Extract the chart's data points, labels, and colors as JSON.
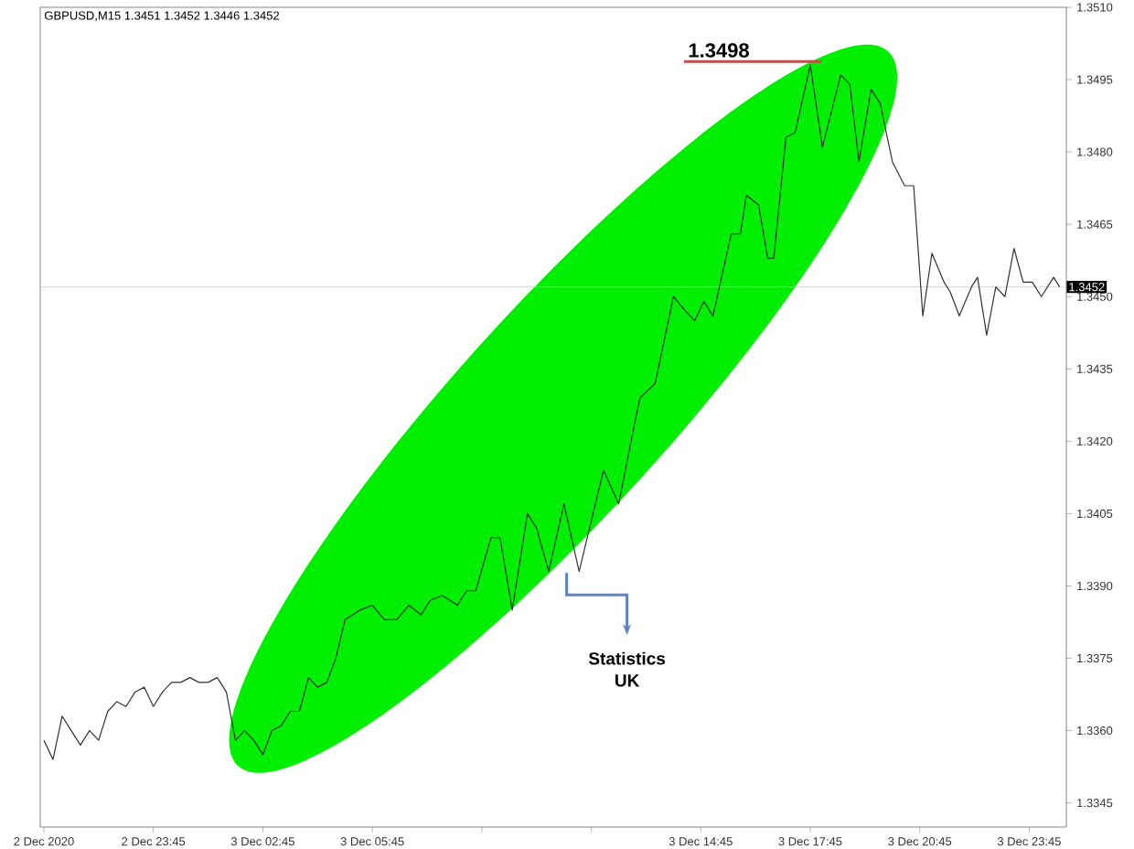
{
  "chart_data": {
    "type": "line",
    "title": "GBPUSD,M15  1.3451 1.3452 1.3446 1.3452",
    "xlim": [
      "2020-12-02T20:39",
      "2020-12-04T00:46"
    ],
    "ylim": [
      1.334,
      1.351
    ],
    "xticks": [
      {
        "value": "2020-12-02T20:45",
        "label": "2 Dec 2020"
      },
      {
        "value": "2020-12-02T23:45",
        "label": "2 Dec 23:45"
      },
      {
        "value": "2020-12-03T02:45",
        "label": "3 Dec 02:45"
      },
      {
        "value": "2020-12-03T05:45",
        "label": "3 Dec 05:45"
      },
      {
        "value": "2020-12-03T08:45",
        "label": null
      },
      {
        "value": "2020-12-03T11:45",
        "label": null
      },
      {
        "value": "2020-12-03T14:45",
        "label": "3 Dec 14:45"
      },
      {
        "value": "2020-12-03T17:45",
        "label": "3 Dec 17:45"
      },
      {
        "value": "2020-12-03T20:45",
        "label": "3 Dec 20:45"
      },
      {
        "value": "2020-12-03T23:45",
        "label": "3 Dec 23:45"
      }
    ],
    "yticks": [
      {
        "value": 1.3345,
        "label": "1.3345"
      },
      {
        "value": 1.336,
        "label": "1.3360"
      },
      {
        "value": 1.3375,
        "label": "1.3375"
      },
      {
        "value": 1.339,
        "label": "1.3390"
      },
      {
        "value": 1.3405,
        "label": "1.3405"
      },
      {
        "value": 1.342,
        "label": "1.3420"
      },
      {
        "value": 1.3435,
        "label": "1.3435"
      },
      {
        "value": 1.345,
        "label": "1.3450"
      },
      {
        "value": 1.3465,
        "label": "1.3465"
      },
      {
        "value": 1.348,
        "label": "1.3480"
      },
      {
        "value": 1.3495,
        "label": "1.3495"
      },
      {
        "value": 1.351,
        "label": "1.3510"
      }
    ],
    "grid": false,
    "marker": "none",
    "line_style": "solid",
    "ref_lines": [
      {
        "axis": "y",
        "value": 1.3452,
        "label": "1.3452",
        "color": "#c8c8c8"
      }
    ],
    "annotations": [
      {
        "text": "1.3498",
        "x": "2020-12-03T17:45",
        "y": 1.3498
      },
      "Statistics UK"
    ],
    "series": [
      {
        "color": "#333333",
        "x": [
          "2020-12-02T20:45",
          "2020-12-02T21:00",
          "2020-12-02T21:15",
          "2020-12-02T21:30",
          "2020-12-02T21:45",
          "2020-12-02T22:00",
          "2020-12-02T22:15",
          "2020-12-02T22:30",
          "2020-12-02T22:45",
          "2020-12-02T23:00",
          "2020-12-02T23:15",
          "2020-12-02T23:30",
          "2020-12-02T23:45",
          "2020-12-03T00:00",
          "2020-12-03T00:15",
          "2020-12-03T00:30",
          "2020-12-03T00:45",
          "2020-12-03T01:00",
          "2020-12-03T01:15",
          "2020-12-03T01:30",
          "2020-12-03T01:45",
          "2020-12-03T02:00",
          "2020-12-03T02:15",
          "2020-12-03T02:30",
          "2020-12-03T02:45",
          "2020-12-03T03:00",
          "2020-12-03T03:15",
          "2020-12-03T03:30",
          "2020-12-03T03:45",
          "2020-12-03T04:00",
          "2020-12-03T04:15",
          "2020-12-03T04:30",
          "2020-12-03T04:45",
          "2020-12-03T05:00",
          "2020-12-03T05:25",
          "2020-12-03T05:45",
          "2020-12-03T06:05",
          "2020-12-03T06:25",
          "2020-12-03T06:45",
          "2020-12-03T07:05",
          "2020-12-03T07:20",
          "2020-12-03T07:40",
          "2020-12-03T08:05",
          "2020-12-03T08:20",
          "2020-12-03T08:35",
          "2020-12-03T09:00",
          "2020-12-03T09:15",
          "2020-12-03T09:35",
          "2020-12-03T10:00",
          "2020-12-03T10:15",
          "2020-12-03T10:35",
          "2020-12-03T11:00",
          "2020-12-03T11:25",
          "2020-12-03T12:05",
          "2020-12-03T12:30",
          "2020-12-03T12:55",
          "2020-12-03T13:05",
          "2020-12-03T13:30",
          "2020-12-03T13:40",
          "2020-12-03T14:00",
          "2020-12-03T14:20",
          "2020-12-03T14:35",
          "2020-12-03T14:50",
          "2020-12-03T15:05",
          "2020-12-03T15:35",
          "2020-12-03T15:50",
          "2020-12-03T16:00",
          "2020-12-03T16:20",
          "2020-12-03T16:35",
          "2020-12-03T16:45",
          "2020-12-03T17:05",
          "2020-12-03T17:20",
          "2020-12-03T17:45",
          "2020-12-03T18:05",
          "2020-12-03T18:35",
          "2020-12-03T18:50",
          "2020-12-03T19:05",
          "2020-12-03T19:25",
          "2020-12-03T19:40",
          "2020-12-03T20:00",
          "2020-12-03T20:20",
          "2020-12-03T20:35",
          "2020-12-03T20:50",
          "2020-12-03T21:05",
          "2020-12-03T21:25",
          "2020-12-03T21:35",
          "2020-12-03T21:50",
          "2020-12-03T22:10",
          "2020-12-03T22:20",
          "2020-12-03T22:35",
          "2020-12-03T22:50",
          "2020-12-03T23:05",
          "2020-12-03T23:20",
          "2020-12-03T23:35",
          "2020-12-03T23:50",
          "2020-12-04T00:05",
          "2020-12-04T00:25",
          "2020-12-04T00:35"
        ],
        "values": [
          1.3358,
          1.3354,
          1.3363,
          1.336,
          1.3357,
          1.336,
          1.3358,
          1.3364,
          1.3366,
          1.3365,
          1.3368,
          1.3369,
          1.3365,
          1.3368,
          1.337,
          1.337,
          1.3371,
          1.337,
          1.337,
          1.3371,
          1.3368,
          1.3358,
          1.336,
          1.3358,
          1.3355,
          1.336,
          1.3361,
          1.3364,
          1.3364,
          1.3371,
          1.3369,
          1.337,
          1.3375,
          1.3383,
          1.3385,
          1.3386,
          1.3383,
          1.3383,
          1.3386,
          1.3384,
          1.3387,
          1.3388,
          1.3386,
          1.3389,
          1.3389,
          1.34,
          1.34,
          1.3385,
          1.3405,
          1.3402,
          1.3393,
          1.3407,
          1.3393,
          1.3414,
          1.3407,
          1.3423,
          1.3429,
          1.3432,
          1.3438,
          1.345,
          1.3447,
          1.3445,
          1.3449,
          1.3446,
          1.3463,
          1.3463,
          1.3471,
          1.3469,
          1.3458,
          1.3458,
          1.3483,
          1.3484,
          1.3498,
          1.3481,
          1.3496,
          1.3494,
          1.3478,
          1.3493,
          1.349,
          1.3478,
          1.3473,
          1.3473,
          1.3446,
          1.3459,
          1.3453,
          1.3451,
          1.3446,
          1.3452,
          1.3454,
          1.3442,
          1.3452,
          1.345,
          1.346,
          1.3453,
          1.3453,
          1.345,
          1.3454,
          1.3452
        ]
      }
    ]
  }
}
